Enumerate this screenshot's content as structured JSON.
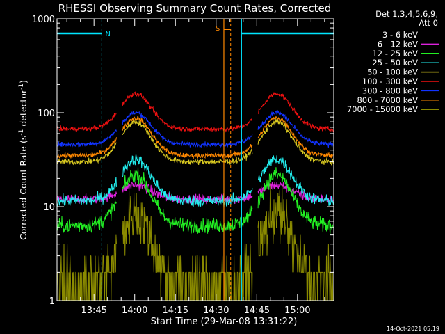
{
  "chart_data": {
    "type": "line",
    "title": "RHESSI Observing Summary Count Rates, Corrected",
    "xlabel": "Start Time (29-Mar-08 13:31:22)",
    "ylabel_main": "Corrected Count Rate (s",
    "ylabel_sup1": "-1",
    "ylabel_mid": " detector",
    "ylabel_sup2": "-1",
    "ylabel_end": ")",
    "yscale": "log",
    "ylim": [
      1,
      1000
    ],
    "y_ticks": [
      1,
      10,
      100,
      1000
    ],
    "y_tick_labels": [
      "1",
      "10",
      "100",
      "1000"
    ],
    "xlim_minutes": [
      0,
      102
    ],
    "x_ticks_minutes": [
      13.63,
      28.63,
      43.63,
      58.63,
      73.63,
      88.63
    ],
    "x_tick_labels": [
      "13:45",
      "14:00",
      "14:15",
      "14:30",
      "14:45",
      "15:00"
    ],
    "legend_header_1": "Det 1,3,4,5,6,9,",
    "legend_header_2": "Att 0",
    "legend_placement": "right",
    "series": [
      {
        "name": "3 - 6 keV",
        "color": "#000000",
        "base": 2.7,
        "peak": 13,
        "noise": 0.22,
        "quant": true
      },
      {
        "name": "6 - 12 keV",
        "color": "#dd22dd",
        "base": 12,
        "peak": 17,
        "noise": 0.06
      },
      {
        "name": "12 - 25 keV",
        "color": "#22ee22",
        "base": 6.3,
        "peak": 22,
        "noise": 0.09
      },
      {
        "name": "25 - 50 keV",
        "color": "#22eeee",
        "base": 11.5,
        "peak": 32,
        "noise": 0.07
      },
      {
        "name": "50 - 100 keV",
        "color": "#d8c820",
        "base": 30,
        "peak": 80,
        "noise": 0.035
      },
      {
        "name": "100 - 300 keV",
        "color": "#ee1111",
        "base": 67,
        "peak": 160,
        "noise": 0.03
      },
      {
        "name": "300 - 800 keV",
        "color": "#1133ff",
        "base": 46,
        "peak": 100,
        "noise": 0.03
      },
      {
        "name": "800 - 7000 keV",
        "color": "#ff8800",
        "base": 35,
        "peak": 88,
        "noise": 0.03
      },
      {
        "name": "7000 - 15000 keV",
        "color": "#8a8a00",
        "base": 1.5,
        "peak": 8.5,
        "noise": 0.35,
        "quant": true
      }
    ],
    "peaks_minutes": [
      29,
      81
    ],
    "data_gaps_minutes": [
      [
        22,
        24
      ],
      [
        72,
        74
      ]
    ],
    "night_segments_minutes": [
      [
        0,
        16.5
      ],
      [
        68,
        102
      ]
    ],
    "night_label": "N",
    "saa_segment_minutes": [
      61.5,
      64
    ],
    "saa_label": "S"
  },
  "footer": {
    "timestamp": "14-Oct-2021 05:19"
  },
  "colors": {
    "background": "#000000",
    "axes": "#ffffff",
    "night_marker": "#00e5ff",
    "saa_marker": "#ff8800"
  }
}
